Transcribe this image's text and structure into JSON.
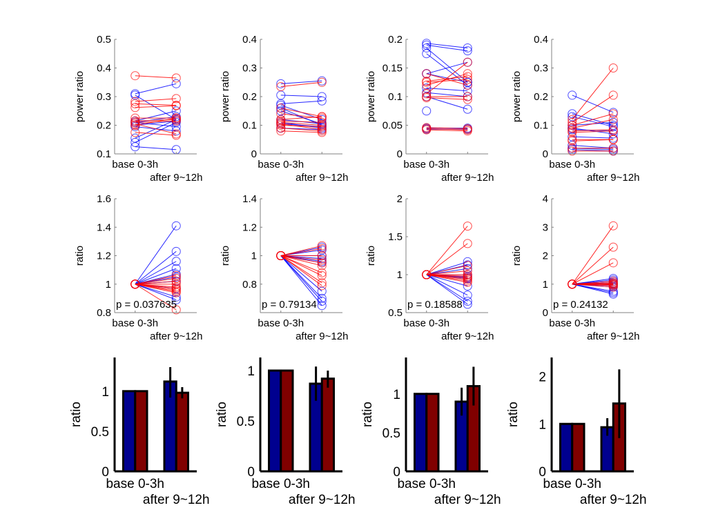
{
  "colors": {
    "red_series": "#ff0000",
    "blue_series": "#0000ff",
    "bar_blue": "#00008f",
    "bar_red": "#800000",
    "axis_line": "#808080",
    "bar_axis": "#000000"
  },
  "chart_data": [
    {
      "type": "line",
      "ylabel": "power ratio",
      "ylim": [
        0.1,
        0.5
      ],
      "yticks": [
        "0.1",
        "0.2",
        "0.3",
        "0.4",
        "0.5"
      ],
      "xlim": [
        0.5,
        2.5
      ],
      "xticklabels": [
        "base 0-3h",
        "after 9~12h"
      ],
      "series": [
        {
          "color": "blue",
          "pairs": [
            [
              0.31,
              0.345
            ],
            [
              0.305,
              0.22
            ],
            [
              0.215,
              0.25
            ],
            [
              0.21,
              0.23
            ],
            [
              0.2,
              0.215
            ],
            [
              0.195,
              0.18
            ],
            [
              0.155,
              0.22
            ],
            [
              0.14,
              0.21
            ],
            [
              0.125,
              0.115
            ],
            [
              0.21,
              0.195
            ]
          ]
        },
        {
          "color": "red",
          "pairs": [
            [
              0.373,
              0.365
            ],
            [
              0.283,
              0.293
            ],
            [
              0.275,
              0.27
            ],
            [
              0.262,
              0.268
            ],
            [
              0.225,
              0.225
            ],
            [
              0.215,
              0.22
            ],
            [
              0.21,
              0.215
            ],
            [
              0.205,
              0.17
            ],
            [
              0.175,
              0.165
            ],
            [
              0.2,
              0.225
            ]
          ]
        }
      ]
    },
    {
      "type": "line",
      "ylabel": "power ratio",
      "ylim": [
        0,
        0.4
      ],
      "yticks": [
        "0",
        "0.1",
        "0.2",
        "0.3",
        "0.4"
      ],
      "xlim": [
        0.5,
        2.5
      ],
      "xticklabels": [
        "base 0-3h",
        "after 9~12h"
      ],
      "series": [
        {
          "color": "blue",
          "pairs": [
            [
              0.245,
              0.255
            ],
            [
              0.205,
              0.2
            ],
            [
              0.175,
              0.185
            ],
            [
              0.17,
              0.12
            ],
            [
              0.16,
              0.1
            ],
            [
              0.15,
              0.105
            ],
            [
              0.12,
              0.105
            ],
            [
              0.105,
              0.095
            ],
            [
              0.09,
              0.085
            ],
            [
              0.11,
              0.09
            ]
          ]
        },
        {
          "color": "red",
          "pairs": [
            [
              0.235,
              0.25
            ],
            [
              0.16,
              0.13
            ],
            [
              0.14,
              0.125
            ],
            [
              0.12,
              0.13
            ],
            [
              0.115,
              0.11
            ],
            [
              0.11,
              0.1
            ],
            [
              0.1,
              0.095
            ],
            [
              0.09,
              0.08
            ],
            [
              0.08,
              0.075
            ],
            [
              0.105,
              0.085
            ]
          ]
        }
      ]
    },
    {
      "type": "line",
      "ylabel": "power ratio",
      "ylim": [
        0,
        0.2
      ],
      "yticks": [
        "0",
        "0.05",
        "0.1",
        "0.15",
        "0.2"
      ],
      "xlim": [
        0.5,
        2.5
      ],
      "xticklabels": [
        "base 0-3h",
        "after 9~12h"
      ],
      "series": [
        {
          "color": "blue",
          "pairs": [
            [
              0.193,
              0.185
            ],
            [
              0.19,
              0.18
            ],
            [
              0.185,
              0.125
            ],
            [
              0.175,
              0.12
            ],
            [
              0.14,
              0.16
            ],
            [
              0.14,
              0.125
            ],
            [
              0.115,
              0.11
            ],
            [
              0.1,
              0.078
            ],
            [
              0.107,
              0.1
            ],
            [
              0.045,
              0.045
            ],
            [
              0.043,
              0.043
            ]
          ]
        },
        {
          "color": "red",
          "pairs": [
            [
              0.14,
              0.12
            ],
            [
              0.127,
              0.135
            ],
            [
              0.125,
              0.13
            ],
            [
              0.12,
              0.14
            ],
            [
              0.105,
              0.16
            ],
            [
              0.1,
              0.1
            ],
            [
              0.098,
              0.095
            ],
            [
              0.046,
              0.044
            ],
            [
              0.044,
              0.042
            ],
            [
              0.042,
              0.04
            ]
          ]
        }
      ],
      "extra_points": [
        {
          "color": "blue",
          "x": 1,
          "y": 0.075
        }
      ]
    },
    {
      "type": "line",
      "ylabel": "power ratio",
      "ylim": [
        0,
        0.4
      ],
      "yticks": [
        "0",
        "0.1",
        "0.2",
        "0.3",
        "0.4"
      ],
      "xlim": [
        0.5,
        2.5
      ],
      "xticklabels": [
        "base 0-3h",
        "after 9~12h"
      ],
      "series": [
        {
          "color": "blue",
          "pairs": [
            [
              0.205,
              0.145
            ],
            [
              0.14,
              0.1
            ],
            [
              0.13,
              0.095
            ],
            [
              0.1,
              0.11
            ],
            [
              0.09,
              0.07
            ],
            [
              0.085,
              0.08
            ],
            [
              0.06,
              0.055
            ],
            [
              0.03,
              0.02
            ],
            [
              0.015,
              0.01
            ],
            [
              0.02,
              0.015
            ]
          ]
        },
        {
          "color": "red",
          "pairs": [
            [
              0.12,
              0.3
            ],
            [
              0.11,
              0.205
            ],
            [
              0.1,
              0.14
            ],
            [
              0.09,
              0.12
            ],
            [
              0.08,
              0.085
            ],
            [
              0.075,
              0.08
            ],
            [
              0.05,
              0.05
            ],
            [
              0.045,
              0.05
            ],
            [
              0.02,
              0.02
            ],
            [
              0.01,
              0.01
            ]
          ]
        }
      ]
    },
    {
      "type": "line",
      "ylabel": "ratio",
      "ylim": [
        0.8,
        1.6
      ],
      "yticks": [
        "0.8",
        "1",
        "1.2",
        "1.4",
        "1.6"
      ],
      "xlim": [
        0.5,
        2.5
      ],
      "xticklabels": [
        "base 0-3h",
        "after 9~12h"
      ],
      "annotation": "p = 0.037635",
      "series": [
        {
          "color": "blue",
          "pairs": [
            [
              1,
              1.41
            ],
            [
              1,
              1.23
            ],
            [
              1,
              1.16
            ],
            [
              1,
              1.11
            ],
            [
              1,
              1.07
            ],
            [
              1,
              1.05
            ],
            [
              1,
              1.02
            ],
            [
              1,
              0.97
            ],
            [
              1,
              0.91
            ],
            [
              1,
              0.89
            ]
          ]
        },
        {
          "color": "red",
          "pairs": [
            [
              1,
              1.06
            ],
            [
              1,
              1.04
            ],
            [
              1,
              1.02
            ],
            [
              1,
              1.0
            ],
            [
              1,
              0.98
            ],
            [
              1,
              0.97
            ],
            [
              1,
              0.96
            ],
            [
              1,
              0.95
            ],
            [
              1,
              0.94
            ],
            [
              1,
              0.82
            ]
          ]
        }
      ]
    },
    {
      "type": "line",
      "ylabel": "ratio",
      "ylim": [
        0.6,
        1.4
      ],
      "yticks": [
        "",
        "0.8",
        "1",
        "1.2",
        "1.4"
      ],
      "xlim": [
        0.5,
        2.5
      ],
      "xticklabels": [
        "base 0-3h",
        "after 9~12h"
      ],
      "annotation": "p = 0.79134",
      "series": [
        {
          "color": "blue",
          "pairs": [
            [
              1,
              1.06
            ],
            [
              1,
              1.04
            ],
            [
              1,
              1.0
            ],
            [
              1,
              0.98
            ],
            [
              1,
              0.96
            ],
            [
              1,
              0.95
            ],
            [
              1,
              0.75
            ],
            [
              1,
              0.7
            ],
            [
              1,
              0.68
            ],
            [
              1,
              0.65
            ]
          ]
        },
        {
          "color": "red",
          "pairs": [
            [
              1,
              1.07
            ],
            [
              1,
              1.05
            ],
            [
              1,
              1.0
            ],
            [
              1,
              0.97
            ],
            [
              1,
              0.95
            ],
            [
              1,
              0.93
            ],
            [
              1,
              0.88
            ],
            [
              1,
              0.86
            ],
            [
              1,
              0.81
            ],
            [
              1,
              0.79
            ]
          ]
        }
      ]
    },
    {
      "type": "line",
      "ylabel": "ratio",
      "ylim": [
        0.5,
        2
      ],
      "yticks": [
        "0.5",
        "1",
        "1.5",
        "2"
      ],
      "xlim": [
        0.5,
        2.5
      ],
      "xticklabels": [
        "base 0-3h",
        "after 9~12h"
      ],
      "annotation": "p = 0.18588",
      "series": [
        {
          "color": "blue",
          "pairs": [
            [
              1,
              1.17
            ],
            [
              1,
              1.13
            ],
            [
              1,
              1.08
            ],
            [
              1,
              1.0
            ],
            [
              1,
              0.97
            ],
            [
              1,
              0.95
            ],
            [
              1,
              0.85
            ],
            [
              1,
              0.73
            ],
            [
              1,
              0.65
            ],
            [
              1,
              0.61
            ]
          ]
        },
        {
          "color": "red",
          "pairs": [
            [
              1,
              1.64
            ],
            [
              1,
              1.41
            ],
            [
              1,
              1.12
            ],
            [
              1,
              1.05
            ],
            [
              1,
              1.0
            ],
            [
              1,
              0.98
            ],
            [
              1,
              0.96
            ],
            [
              1,
              0.94
            ],
            [
              1,
              0.92
            ],
            [
              1,
              0.9
            ]
          ]
        }
      ]
    },
    {
      "type": "line",
      "ylabel": "ratio",
      "ylim": [
        0,
        4
      ],
      "yticks": [
        "0",
        "1",
        "2",
        "3",
        "4"
      ],
      "xlim": [
        0.5,
        2.5
      ],
      "xticklabels": [
        "base 0-3h",
        "after 9~12h"
      ],
      "annotation": "p = 0.24132",
      "series": [
        {
          "color": "blue",
          "pairs": [
            [
              1,
              1.2
            ],
            [
              1,
              1.15
            ],
            [
              1,
              1.1
            ],
            [
              1,
              1.05
            ],
            [
              1,
              1.0
            ],
            [
              1,
              0.95
            ],
            [
              1,
              0.9
            ],
            [
              1,
              0.75
            ],
            [
              1,
              0.7
            ],
            [
              1,
              0.65
            ]
          ]
        },
        {
          "color": "red",
          "pairs": [
            [
              1,
              3.05
            ],
            [
              1,
              2.3
            ],
            [
              1,
              1.75
            ],
            [
              1,
              1.1
            ],
            [
              1,
              1.05
            ],
            [
              1,
              1.02
            ],
            [
              1,
              1.0
            ],
            [
              1,
              0.98
            ],
            [
              1,
              0.95
            ],
            [
              1,
              0.9
            ]
          ]
        }
      ]
    },
    {
      "type": "bar",
      "ylabel": "ratio",
      "ylim": [
        0,
        1.42
      ],
      "yticks": [
        [
          "0",
          0
        ],
        [
          "0.5",
          0.5
        ],
        [
          "1",
          1
        ]
      ],
      "xlim": [
        0.5,
        2.5
      ],
      "xticklabels": [
        "base 0-3h",
        "after 9~12h"
      ],
      "groups": [
        {
          "blue": 1,
          "red": 1
        },
        {
          "blue": 1.12,
          "red": 0.98,
          "blue_err": [
            0.92,
            1.3
          ],
          "red_err": [
            0.91,
            1.05
          ]
        }
      ]
    },
    {
      "type": "bar",
      "ylabel": "ratio",
      "ylim": [
        0,
        1.13
      ],
      "yticks": [
        [
          "0",
          0
        ],
        [
          "0.5",
          0.5
        ],
        [
          "1",
          1
        ]
      ],
      "xlim": [
        0.5,
        2.5
      ],
      "xticklabels": [
        "base 0-3h",
        "after 9~12h"
      ],
      "groups": [
        {
          "blue": 1,
          "red": 1
        },
        {
          "blue": 0.87,
          "red": 0.92,
          "blue_err": [
            0.7,
            1.04
          ],
          "red_err": [
            0.83,
            1.0
          ]
        }
      ]
    },
    {
      "type": "bar",
      "ylabel": "ratio",
      "ylim": [
        0,
        1.47
      ],
      "yticks": [
        [
          "0",
          0
        ],
        [
          "0.5",
          0.5
        ],
        [
          "1",
          1
        ]
      ],
      "xlim": [
        0.5,
        2.5
      ],
      "xticklabels": [
        "base 0-3h",
        "after 9~12h"
      ],
      "groups": [
        {
          "blue": 1,
          "red": 1
        },
        {
          "blue": 0.9,
          "red": 1.1,
          "blue_err": [
            0.72,
            1.08
          ],
          "red_err": [
            0.85,
            1.35
          ]
        }
      ]
    },
    {
      "type": "bar",
      "ylabel": "ratio",
      "ylim": [
        0,
        2.4
      ],
      "yticks": [
        [
          "0",
          0
        ],
        [
          "1",
          1
        ],
        [
          "2",
          2
        ]
      ],
      "xlim": [
        0.5,
        2.5
      ],
      "xticklabels": [
        "base 0-3h",
        "after 9~12h"
      ],
      "groups": [
        {
          "blue": 1,
          "red": 1
        },
        {
          "blue": 0.93,
          "red": 1.43,
          "blue_err": [
            0.75,
            1.12
          ],
          "red_err": [
            0.7,
            2.15
          ]
        }
      ]
    }
  ]
}
